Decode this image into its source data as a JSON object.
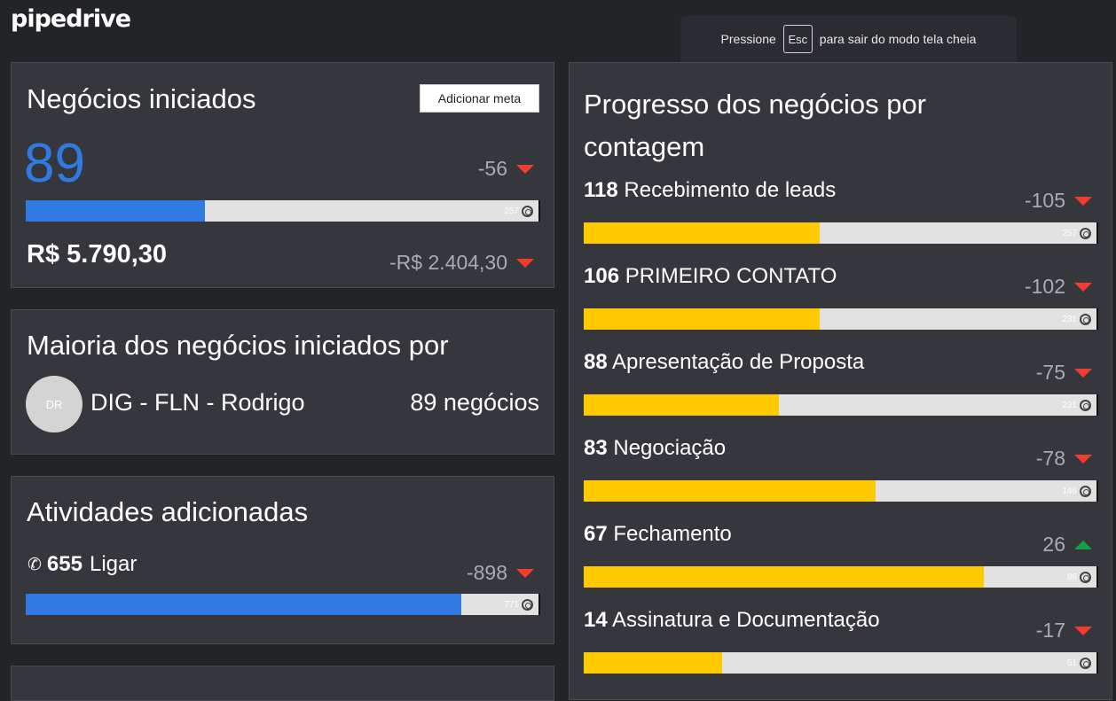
{
  "brand": {
    "logo": "pipedrive"
  },
  "esc_banner": {
    "prefix": "Pressione",
    "key": "Esc",
    "suffix": "para sair do modo tela cheia"
  },
  "deals_started": {
    "title": "Negócios iniciados",
    "add_goal_label": "Adicionar meta",
    "count": "89",
    "count_delta": "-56",
    "count_delta_direction": "down",
    "goal": "257",
    "progress": 0.35,
    "value": "R$ 5.790,30",
    "value_delta": "-R$ 2.404,30",
    "value_delta_direction": "down",
    "bar_color": "#317ae2"
  },
  "top_owner": {
    "title": "Maioria dos negócios iniciados por",
    "avatar_initials": "DR",
    "name": "DIG - FLN - Rodrigo",
    "deals": "89 negócios"
  },
  "activities": {
    "title": "Atividades adicionadas",
    "icon": "phone-icon",
    "count": "655",
    "type": "Ligar",
    "delta": "-898",
    "delta_direction": "down",
    "goal": "771",
    "progress": 0.85,
    "bar_color": "#317ae2"
  },
  "progress_by_count": {
    "title": "Progresso dos negócios por contagem",
    "bar_color": "#ffcb00",
    "stages": [
      {
        "count": "118",
        "name": "Recebimento de leads",
        "delta": "-105",
        "direction": "down",
        "goal": "257",
        "progress": 0.46
      },
      {
        "count": "106",
        "name": "PRIMEIRO CONTATO",
        "delta": "-102",
        "direction": "down",
        "goal": "231",
        "progress": 0.46
      },
      {
        "count": "88",
        "name": "Apresentação de Proposta",
        "delta": "-75",
        "direction": "down",
        "goal": "231",
        "progress": 0.38
      },
      {
        "count": "83",
        "name": "Negociação",
        "delta": "-78",
        "direction": "down",
        "goal": "146",
        "progress": 0.57
      },
      {
        "count": "67",
        "name": "Fechamento",
        "delta": "26",
        "direction": "up",
        "goal": "86",
        "progress": 0.78
      },
      {
        "count": "14",
        "name": "Assinatura e Documentação",
        "delta": "-17",
        "direction": "down",
        "goal": "51",
        "progress": 0.27
      }
    ]
  }
}
